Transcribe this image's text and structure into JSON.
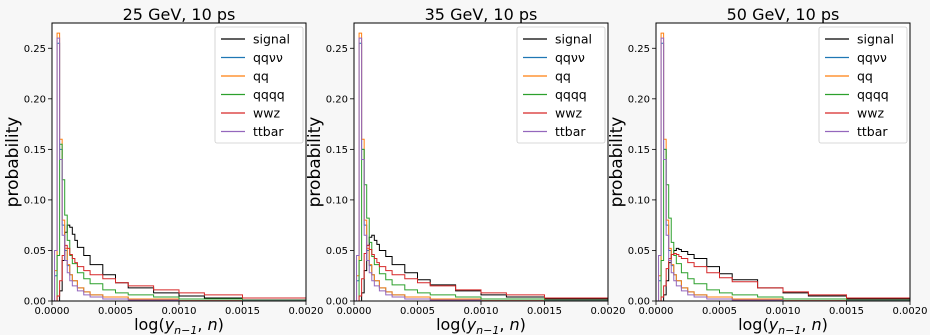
{
  "chart_data": [
    {
      "type": "line",
      "title": "25 GeV, 10 ps",
      "xlabel": "log(y_{n-1}, n)",
      "ylabel": "probability",
      "xlim": [
        0.0,
        0.002
      ],
      "ylim": [
        0.0,
        0.275
      ],
      "xticks": [
        "0.0000",
        "0.0005",
        "0.0010",
        "0.0015",
        "0.0020"
      ],
      "yticks": [
        "0.00",
        "0.05",
        "0.10",
        "0.15",
        "0.20",
        "0.25"
      ],
      "legend_position": "top-right",
      "series": [
        {
          "name": "signal",
          "color": "#000000",
          "x": [
            4e-05,
            6e-05,
            8e-05,
            0.0001,
            0.00012,
            0.00014,
            0.00016,
            0.00018,
            0.0002,
            0.00025,
            0.0003,
            0.0004,
            0.0005,
            0.0006,
            0.0008,
            0.001,
            0.0012,
            0.0015,
            0.002
          ],
          "y": [
            0.0,
            0.01,
            0.04,
            0.068,
            0.075,
            0.073,
            0.066,
            0.06,
            0.053,
            0.045,
            0.036,
            0.026,
            0.018,
            0.013,
            0.008,
            0.005,
            0.003,
            0.001,
            0.0
          ]
        },
        {
          "name": "qqνν",
          "color": "#1f77b4",
          "x": [
            2e-05,
            4e-05,
            6e-05,
            8e-05,
            0.0001,
            0.00012,
            0.00014,
            0.00016,
            0.0002,
            0.00025,
            0.0003,
            0.0004,
            0.0006,
            0.001,
            0.002
          ],
          "y": [
            0.025,
            0.255,
            0.15,
            0.075,
            0.05,
            0.035,
            0.026,
            0.02,
            0.013,
            0.009,
            0.006,
            0.004,
            0.002,
            0.0005,
            0.0
          ]
        },
        {
          "name": "qq",
          "color": "#ff7f0e",
          "x": [
            2e-05,
            4e-05,
            6e-05,
            8e-05,
            0.0001,
            0.00012,
            0.00014,
            0.00016,
            0.0002,
            0.00025,
            0.0003,
            0.0004,
            0.0006,
            0.001,
            0.002
          ],
          "y": [
            0.03,
            0.265,
            0.16,
            0.08,
            0.052,
            0.036,
            0.026,
            0.02,
            0.013,
            0.009,
            0.006,
            0.004,
            0.002,
            0.0005,
            0.0
          ]
        },
        {
          "name": "qqqq",
          "color": "#2ca02c",
          "x": [
            2e-05,
            4e-05,
            6e-05,
            8e-05,
            0.0001,
            0.00012,
            0.00014,
            0.00016,
            0.0002,
            0.00025,
            0.0003,
            0.0004,
            0.0005,
            0.0006,
            0.0008,
            0.001,
            0.0015,
            0.002
          ],
          "y": [
            0.0,
            0.045,
            0.155,
            0.12,
            0.085,
            0.06,
            0.045,
            0.037,
            0.028,
            0.022,
            0.017,
            0.011,
            0.008,
            0.006,
            0.004,
            0.002,
            0.0008,
            0.0
          ]
        },
        {
          "name": "wwz",
          "color": "#d62728",
          "x": [
            2e-05,
            4e-05,
            6e-05,
            8e-05,
            0.0001,
            0.00012,
            0.00014,
            0.00016,
            0.00018,
            0.0002,
            0.00025,
            0.0003,
            0.0004,
            0.0005,
            0.0006,
            0.0008,
            0.001,
            0.0012,
            0.0015,
            0.002
          ],
          "y": [
            0.0,
            0.005,
            0.02,
            0.045,
            0.055,
            0.052,
            0.046,
            0.042,
            0.038,
            0.034,
            0.03,
            0.026,
            0.022,
            0.018,
            0.015,
            0.011,
            0.008,
            0.006,
            0.003,
            0.0
          ]
        },
        {
          "name": "ttbar",
          "color": "#9467bd",
          "x": [
            2e-05,
            4e-05,
            6e-05,
            8e-05,
            0.0001,
            0.00012,
            0.00014,
            0.00016,
            0.0002,
            0.00025,
            0.0003,
            0.0004,
            0.0006,
            0.001,
            0.002
          ],
          "y": [
            0.05,
            0.26,
            0.14,
            0.065,
            0.04,
            0.028,
            0.02,
            0.015,
            0.01,
            0.006,
            0.004,
            0.002,
            0.001,
            0.0003,
            0.0
          ]
        }
      ]
    },
    {
      "type": "line",
      "title": "35 GeV, 10 ps",
      "xlabel": "log(y_{n-1}, n)",
      "ylabel": "probability",
      "xlim": [
        0.0,
        0.002
      ],
      "ylim": [
        0.0,
        0.275
      ],
      "xticks": [
        "0.0000",
        "0.0005",
        "0.0010",
        "0.0015",
        "0.0020"
      ],
      "yticks": [
        "0.00",
        "0.05",
        "0.10",
        "0.15",
        "0.20",
        "0.25"
      ],
      "legend_position": "top-right",
      "series": [
        {
          "name": "signal",
          "color": "#000000",
          "x": [
            4e-05,
            6e-05,
            8e-05,
            0.0001,
            0.00012,
            0.00014,
            0.00016,
            0.00018,
            0.0002,
            0.00025,
            0.0003,
            0.0004,
            0.0005,
            0.0006,
            0.0008,
            0.001,
            0.0012,
            0.0015,
            0.002
          ],
          "y": [
            0.0,
            0.008,
            0.03,
            0.055,
            0.063,
            0.065,
            0.06,
            0.056,
            0.05,
            0.044,
            0.036,
            0.028,
            0.021,
            0.016,
            0.01,
            0.006,
            0.004,
            0.002,
            0.0
          ]
        },
        {
          "name": "qqνν",
          "color": "#1f77b4",
          "x": [
            2e-05,
            4e-05,
            6e-05,
            8e-05,
            0.0001,
            0.00012,
            0.00014,
            0.00016,
            0.0002,
            0.00025,
            0.0003,
            0.0004,
            0.0006,
            0.001,
            0.002
          ],
          "y": [
            0.02,
            0.255,
            0.15,
            0.075,
            0.05,
            0.035,
            0.026,
            0.02,
            0.013,
            0.009,
            0.006,
            0.004,
            0.002,
            0.0005,
            0.0
          ]
        },
        {
          "name": "qq",
          "color": "#ff7f0e",
          "x": [
            2e-05,
            4e-05,
            6e-05,
            8e-05,
            0.0001,
            0.00012,
            0.00014,
            0.00016,
            0.0002,
            0.00025,
            0.0003,
            0.0004,
            0.0006,
            0.001,
            0.002
          ],
          "y": [
            0.025,
            0.265,
            0.16,
            0.08,
            0.052,
            0.036,
            0.026,
            0.02,
            0.013,
            0.009,
            0.006,
            0.004,
            0.002,
            0.0005,
            0.0
          ]
        },
        {
          "name": "qqqq",
          "color": "#2ca02c",
          "x": [
            2e-05,
            4e-05,
            6e-05,
            8e-05,
            0.0001,
            0.00012,
            0.00014,
            0.00016,
            0.0002,
            0.00025,
            0.0003,
            0.0004,
            0.0005,
            0.0006,
            0.0008,
            0.001,
            0.0015,
            0.002
          ],
          "y": [
            0.0,
            0.04,
            0.15,
            0.115,
            0.082,
            0.058,
            0.044,
            0.036,
            0.027,
            0.021,
            0.016,
            0.011,
            0.008,
            0.006,
            0.004,
            0.002,
            0.0008,
            0.0
          ]
        },
        {
          "name": "wwz",
          "color": "#d62728",
          "x": [
            2e-05,
            4e-05,
            6e-05,
            8e-05,
            0.0001,
            0.00012,
            0.00014,
            0.00016,
            0.00018,
            0.0002,
            0.00025,
            0.0003,
            0.0004,
            0.0005,
            0.0006,
            0.0008,
            0.001,
            0.0012,
            0.0015,
            0.002
          ],
          "y": [
            0.0,
            0.005,
            0.022,
            0.047,
            0.055,
            0.051,
            0.046,
            0.042,
            0.038,
            0.034,
            0.03,
            0.026,
            0.022,
            0.018,
            0.015,
            0.011,
            0.008,
            0.006,
            0.003,
            0.0
          ]
        },
        {
          "name": "ttbar",
          "color": "#9467bd",
          "x": [
            2e-05,
            4e-05,
            6e-05,
            8e-05,
            0.0001,
            0.00012,
            0.00014,
            0.00016,
            0.0002,
            0.00025,
            0.0003,
            0.0004,
            0.0006,
            0.001,
            0.002
          ],
          "y": [
            0.045,
            0.26,
            0.14,
            0.065,
            0.04,
            0.028,
            0.02,
            0.015,
            0.01,
            0.006,
            0.004,
            0.002,
            0.001,
            0.0003,
            0.0
          ]
        }
      ]
    },
    {
      "type": "line",
      "title": "50 GeV, 10 ps",
      "xlabel": "log(y_{n-1}, n)",
      "ylabel": "probability",
      "xlim": [
        0.0,
        0.002
      ],
      "ylim": [
        0.0,
        0.275
      ],
      "xticks": [
        "0.0000",
        "0.0005",
        "0.0010",
        "0.0015",
        "0.0020"
      ],
      "yticks": [
        "0.00",
        "0.05",
        "0.10",
        "0.15",
        "0.20",
        "0.25"
      ],
      "legend_position": "top-right",
      "series": [
        {
          "name": "signal",
          "color": "#000000",
          "x": [
            4e-05,
            6e-05,
            8e-05,
            0.0001,
            0.00012,
            0.00014,
            0.00016,
            0.00018,
            0.0002,
            0.00025,
            0.0003,
            0.0004,
            0.0005,
            0.0006,
            0.0008,
            0.001,
            0.0012,
            0.0015,
            0.002
          ],
          "y": [
            0.0,
            0.006,
            0.02,
            0.038,
            0.046,
            0.05,
            0.052,
            0.051,
            0.049,
            0.046,
            0.042,
            0.034,
            0.027,
            0.021,
            0.013,
            0.008,
            0.005,
            0.002,
            0.0
          ]
        },
        {
          "name": "qqνν",
          "color": "#1f77b4",
          "x": [
            2e-05,
            4e-05,
            6e-05,
            8e-05,
            0.0001,
            0.00012,
            0.00014,
            0.00016,
            0.0002,
            0.00025,
            0.0003,
            0.0004,
            0.0006,
            0.001,
            0.002
          ],
          "y": [
            0.02,
            0.255,
            0.15,
            0.075,
            0.05,
            0.035,
            0.026,
            0.02,
            0.013,
            0.009,
            0.006,
            0.004,
            0.002,
            0.0005,
            0.0
          ]
        },
        {
          "name": "qq",
          "color": "#ff7f0e",
          "x": [
            2e-05,
            4e-05,
            6e-05,
            8e-05,
            0.0001,
            0.00012,
            0.00014,
            0.00016,
            0.0002,
            0.00025,
            0.0003,
            0.0004,
            0.0006,
            0.001,
            0.002
          ],
          "y": [
            0.025,
            0.265,
            0.16,
            0.08,
            0.052,
            0.036,
            0.026,
            0.02,
            0.013,
            0.009,
            0.006,
            0.004,
            0.002,
            0.0005,
            0.0
          ]
        },
        {
          "name": "qqqq",
          "color": "#2ca02c",
          "x": [
            2e-05,
            4e-05,
            6e-05,
            8e-05,
            0.0001,
            0.00012,
            0.00014,
            0.00016,
            0.0002,
            0.00025,
            0.0003,
            0.0004,
            0.0005,
            0.0006,
            0.0008,
            0.001,
            0.0015,
            0.002
          ],
          "y": [
            0.0,
            0.04,
            0.15,
            0.115,
            0.082,
            0.058,
            0.045,
            0.037,
            0.028,
            0.022,
            0.017,
            0.011,
            0.008,
            0.006,
            0.004,
            0.002,
            0.0008,
            0.0
          ]
        },
        {
          "name": "wwz",
          "color": "#d62728",
          "x": [
            2e-05,
            4e-05,
            6e-05,
            8e-05,
            0.0001,
            0.00012,
            0.00014,
            0.00016,
            0.00018,
            0.0002,
            0.00025,
            0.0003,
            0.0004,
            0.0005,
            0.0006,
            0.0008,
            0.001,
            0.0012,
            0.0015,
            0.002
          ],
          "y": [
            0.0,
            0.004,
            0.015,
            0.032,
            0.042,
            0.046,
            0.047,
            0.046,
            0.044,
            0.042,
            0.038,
            0.034,
            0.028,
            0.023,
            0.019,
            0.013,
            0.009,
            0.006,
            0.003,
            0.0
          ]
        },
        {
          "name": "ttbar",
          "color": "#9467bd",
          "x": [
            2e-05,
            4e-05,
            6e-05,
            8e-05,
            0.0001,
            0.00012,
            0.00014,
            0.00016,
            0.0002,
            0.00025,
            0.0003,
            0.0004,
            0.0006,
            0.001,
            0.002
          ],
          "y": [
            0.045,
            0.26,
            0.14,
            0.065,
            0.04,
            0.028,
            0.02,
            0.015,
            0.01,
            0.006,
            0.004,
            0.002,
            0.001,
            0.0003,
            0.0
          ]
        }
      ]
    }
  ]
}
